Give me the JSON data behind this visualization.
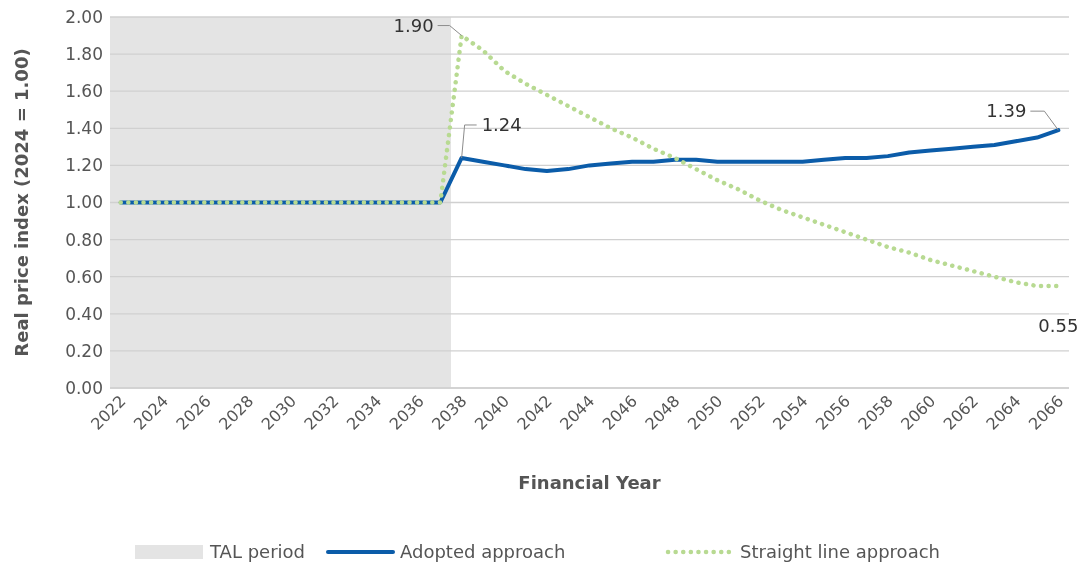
{
  "chart_data": {
    "type": "line",
    "xlabel": "Financial Year",
    "ylabel": "Real price index (2024 = 1.00)",
    "x": [
      2022,
      2023,
      2024,
      2025,
      2026,
      2027,
      2028,
      2029,
      2030,
      2031,
      2032,
      2033,
      2034,
      2035,
      2036,
      2037,
      2038,
      2039,
      2040,
      2041,
      2042,
      2043,
      2044,
      2045,
      2046,
      2047,
      2048,
      2049,
      2050,
      2051,
      2052,
      2053,
      2054,
      2055,
      2056,
      2057,
      2058,
      2059,
      2060,
      2061,
      2062,
      2063,
      2064,
      2065,
      2066
    ],
    "xlim": [
      2021.5,
      2066.5
    ],
    "xticks": [
      2022,
      2024,
      2026,
      2028,
      2030,
      2032,
      2034,
      2036,
      2038,
      2040,
      2042,
      2044,
      2046,
      2048,
      2050,
      2052,
      2054,
      2056,
      2058,
      2060,
      2062,
      2064,
      2066
    ],
    "ylim": [
      0,
      2
    ],
    "yticks": [
      {
        "value": 0,
        "label": "0.00"
      },
      {
        "value": 0.2,
        "label": "0.20"
      },
      {
        "value": 0.4,
        "label": "0.40"
      },
      {
        "value": 0.6,
        "label": "0.60"
      },
      {
        "value": 0.8,
        "label": "0.80"
      },
      {
        "value": 1,
        "label": "1.00"
      },
      {
        "value": 1.2,
        "label": "1.20"
      },
      {
        "value": 1.4,
        "label": "1.40"
      },
      {
        "value": 1.6,
        "label": "1.60"
      },
      {
        "value": 1.8,
        "label": "1.80"
      },
      {
        "value": 2,
        "label": "2.00"
      }
    ],
    "grid": "y",
    "legend": "bottom",
    "bands": [
      {
        "axis": "x",
        "from": 2021.5,
        "to": 2037.5,
        "label": "TAL period",
        "color": "#e4e4e4"
      }
    ],
    "series": [
      {
        "name": "Adopted approach",
        "color": "#0b5ca9",
        "line_style": "solid",
        "values": [
          1,
          1,
          1,
          1,
          1,
          1,
          1,
          1,
          1,
          1,
          1,
          1,
          1,
          1,
          1,
          1,
          1.24,
          1.22,
          1.2,
          1.18,
          1.17,
          1.18,
          1.2,
          1.21,
          1.22,
          1.22,
          1.23,
          1.23,
          1.22,
          1.22,
          1.22,
          1.22,
          1.22,
          1.23,
          1.24,
          1.24,
          1.25,
          1.27,
          1.28,
          1.29,
          1.3,
          1.31,
          1.33,
          1.35,
          1.39
        ],
        "value_labels": [
          null,
          null,
          null,
          null,
          null,
          null,
          null,
          null,
          null,
          null,
          null,
          null,
          null,
          null,
          null,
          null,
          "1.24",
          null,
          null,
          null,
          null,
          null,
          null,
          null,
          null,
          null,
          null,
          null,
          null,
          null,
          null,
          null,
          null,
          null,
          null,
          null,
          null,
          null,
          null,
          null,
          null,
          null,
          null,
          null,
          "1.39"
        ]
      },
      {
        "name": "Straight line approach",
        "color": "#b8da92",
        "line_style": "dotted",
        "values": [
          1,
          1,
          1,
          1,
          1,
          1,
          1,
          1,
          1,
          1,
          1,
          1,
          1,
          1,
          1,
          1,
          1.9,
          1.82,
          1.71,
          1.64,
          1.58,
          1.52,
          1.46,
          1.4,
          1.35,
          1.29,
          1.24,
          1.18,
          1.12,
          1.07,
          1.01,
          0.96,
          0.92,
          0.88,
          0.84,
          0.8,
          0.76,
          0.73,
          0.69,
          0.66,
          0.63,
          0.6,
          0.57,
          0.55,
          0.55
        ],
        "value_labels": [
          null,
          null,
          null,
          null,
          null,
          null,
          null,
          null,
          null,
          null,
          null,
          null,
          null,
          null,
          null,
          null,
          "1.90",
          null,
          null,
          null,
          null,
          null,
          null,
          null,
          null,
          null,
          null,
          null,
          null,
          null,
          null,
          null,
          null,
          null,
          null,
          null,
          null,
          null,
          null,
          null,
          null,
          null,
          null,
          null,
          "0.55"
        ]
      }
    ]
  }
}
